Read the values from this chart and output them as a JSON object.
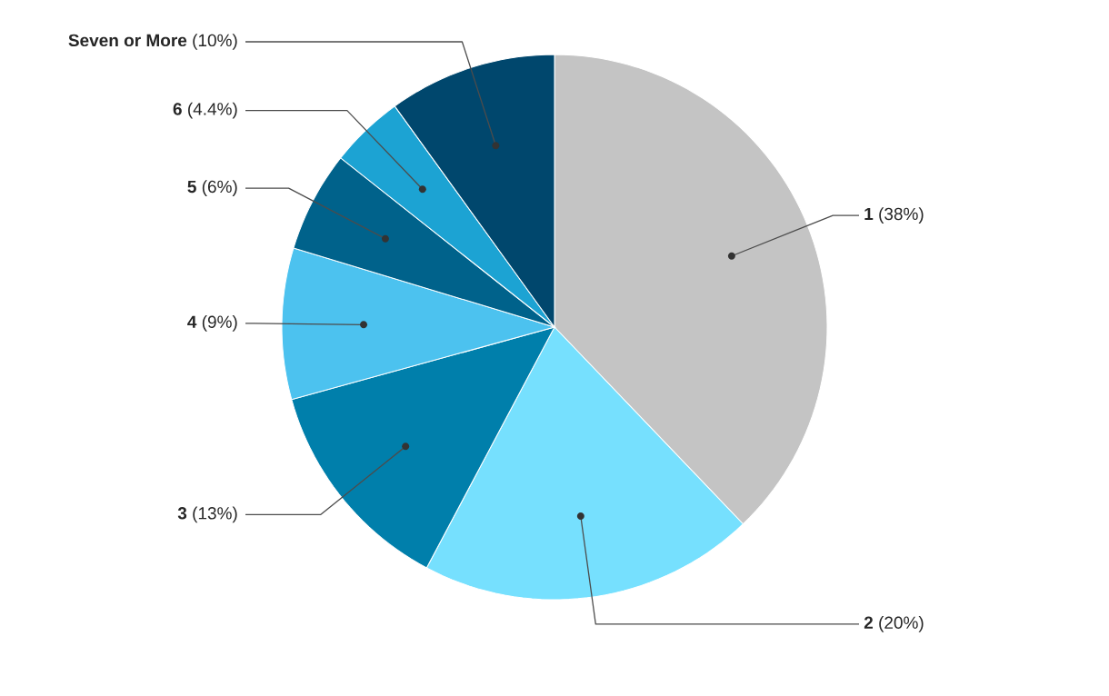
{
  "chart_data": {
    "type": "pie",
    "categories": [
      "1",
      "2",
      "3",
      "4",
      "5",
      "6",
      "Seven or More"
    ],
    "values": [
      38,
      20,
      13,
      9,
      6,
      4.4,
      10
    ],
    "colors": [
      "#c4c4c4",
      "#76e0fe",
      "#007fab",
      "#4cc2ef",
      "#00628b",
      "#1ca3d3",
      "#00476d"
    ],
    "value_labels": [
      "(38%)",
      "(20%)",
      "(13%)",
      "(9%)",
      "(6%)",
      "(4.4%)",
      "(10%)"
    ]
  }
}
